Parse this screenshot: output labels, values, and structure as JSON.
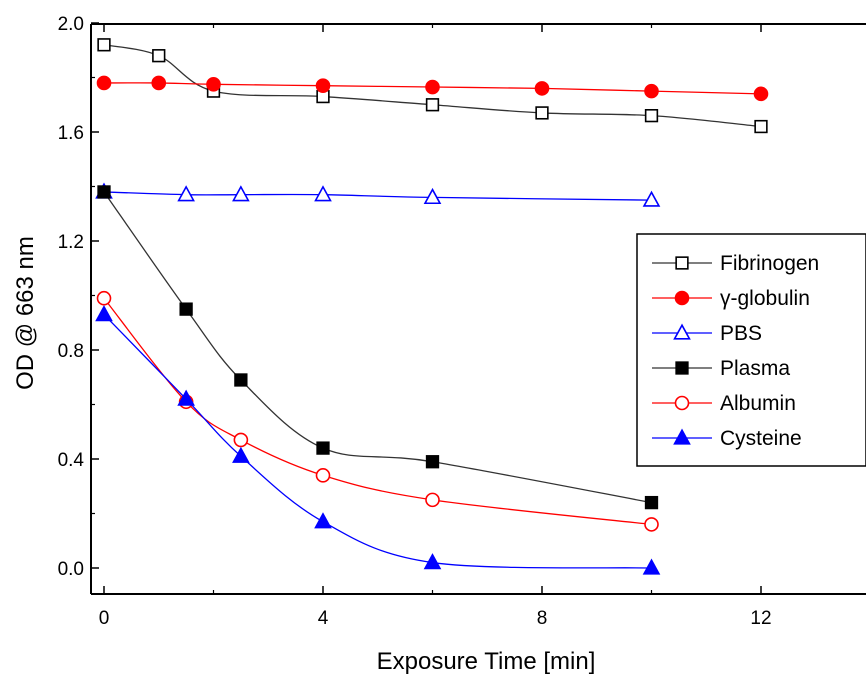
{
  "chart_data": {
    "type": "line",
    "title": "",
    "xlabel": "Exposure Time [min]",
    "ylabel": "OD @ 663 nm",
    "xlim": [
      -0.2,
      14
    ],
    "ylim": [
      -0.2,
      2.0
    ],
    "xticks": [
      0,
      4,
      8,
      12
    ],
    "xtick_labels": [
      "0",
      "4",
      "8",
      "12"
    ],
    "yticks": [
      0.0,
      0.4,
      0.8,
      1.2,
      1.6,
      2.0
    ],
    "ytick_labels": [
      "0.0",
      "0.4",
      "0.8",
      "1.2",
      "1.6",
      "2.0"
    ],
    "grid": false,
    "legend_position": "right",
    "series": [
      {
        "name": "Fibrinogen",
        "marker": "square",
        "filled": false,
        "color": "#000000",
        "line_color": "#333333",
        "x": [
          0,
          1,
          2,
          4,
          6,
          8,
          10,
          12
        ],
        "y": [
          1.92,
          1.88,
          1.75,
          1.73,
          1.7,
          1.67,
          1.66,
          1.62
        ]
      },
      {
        "name": "γ-globulin",
        "marker": "circle",
        "filled": true,
        "color": "#ff0000",
        "line_color": "#ff0000",
        "x": [
          0,
          1,
          2,
          4,
          6,
          8,
          10,
          12
        ],
        "y": [
          1.78,
          1.78,
          1.775,
          1.77,
          1.765,
          1.76,
          1.75,
          1.74
        ]
      },
      {
        "name": "PBS",
        "marker": "triangle",
        "filled": false,
        "color": "#0000ff",
        "line_color": "#0000ff",
        "x": [
          0,
          1.5,
          2.5,
          4,
          6,
          10
        ],
        "y": [
          1.38,
          1.37,
          1.37,
          1.37,
          1.36,
          1.35
        ]
      },
      {
        "name": "Plasma",
        "marker": "square",
        "filled": true,
        "color": "#000000",
        "line_color": "#333333",
        "x": [
          0,
          1.5,
          2.5,
          4,
          6,
          10
        ],
        "y": [
          1.38,
          0.95,
          0.69,
          0.44,
          0.39,
          0.24
        ]
      },
      {
        "name": "Albumin",
        "marker": "circle",
        "filled": false,
        "color": "#ff0000",
        "line_color": "#ff0000",
        "x": [
          0,
          1.5,
          2.5,
          4,
          6,
          10
        ],
        "y": [
          0.99,
          0.61,
          0.47,
          0.34,
          0.25,
          0.16
        ]
      },
      {
        "name": "Cysteine",
        "marker": "triangle",
        "filled": true,
        "color": "#0000ff",
        "line_color": "#0000ff",
        "x": [
          0,
          1.5,
          2.5,
          4,
          6,
          10
        ],
        "y": [
          0.93,
          0.62,
          0.41,
          0.17,
          0.02,
          0.0
        ]
      }
    ]
  }
}
